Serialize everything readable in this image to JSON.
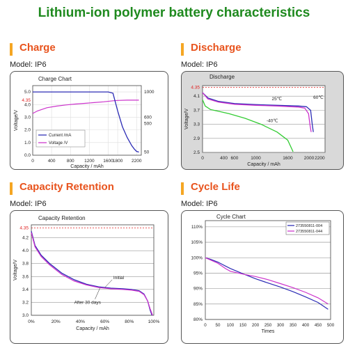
{
  "page": {
    "title": "Lithium-ion polymer battery characteristics"
  },
  "sections": [
    {
      "heading": "Charge",
      "model": "Model: IP6"
    },
    {
      "heading": "Discharge",
      "model": "Model: IP6"
    },
    {
      "heading": "Capacity Retention",
      "model": "Model: IP6"
    },
    {
      "heading": "Cycle Life",
      "model": "Model: IP6"
    }
  ],
  "colors": {
    "title": "#1f8a1f",
    "heading": "#e8531d",
    "accent_bar": "#f5a623",
    "blue": "#2b2bb5",
    "magenta": "#cc33cc",
    "green": "#33cc33",
    "red": "#e02020"
  },
  "chart_data": [
    {
      "type": "line",
      "title": "Charge Chart",
      "xlabel": "Capacity / mAh",
      "ylabel": "Voltage/V",
      "xlim": [
        0,
        2300
      ],
      "ylim": [
        0,
        5.5
      ],
      "y2lim": [
        0,
        1100
      ],
      "x_ticks": [
        "0",
        "400",
        "800",
        "1200",
        "1600",
        "1800",
        "2200"
      ],
      "y_ticks": [
        "0.0",
        "1.0",
        "2.0",
        "3.0",
        "4.0",
        "4.35",
        "5.0"
      ],
      "y2_ticks": [
        "50",
        "500",
        "600",
        "1000"
      ],
      "grid": true,
      "legend_position": "bottom-left",
      "series": [
        {
          "name": "Current /mA",
          "axis": "right",
          "color": "#2b2bb5",
          "x": [
            0,
            400,
            800,
            1200,
            1600,
            1700,
            1800,
            1900,
            2000,
            2100,
            2150,
            2200,
            2250
          ],
          "y": [
            1000,
            1000,
            1000,
            1000,
            1000,
            980,
            700,
            450,
            280,
            150,
            100,
            60,
            50
          ]
        },
        {
          "name": "Voltage /V",
          "axis": "left",
          "color": "#cc33cc",
          "x": [
            0,
            100,
            300,
            500,
            700,
            900,
            1100,
            1300,
            1500,
            1700,
            1800,
            2000,
            2250
          ],
          "y": [
            3.3,
            3.5,
            3.75,
            3.88,
            3.97,
            4.04,
            4.1,
            4.16,
            4.22,
            4.3,
            4.33,
            4.35,
            4.35
          ]
        }
      ],
      "annotations": [
        "4.35"
      ]
    },
    {
      "type": "line",
      "title": "Discharge",
      "xlabel": "Capacity / mAh",
      "ylabel": "Voltage/V",
      "xlim": [
        0,
        2300
      ],
      "ylim": [
        2.5,
        4.4
      ],
      "x_ticks": [
        "0",
        "400",
        "600",
        "1000",
        "1600",
        "2000",
        "2200"
      ],
      "x_tick_values": [
        0,
        400,
        600,
        1000,
        1600,
        2000,
        2200
      ],
      "y_ticks": [
        "2.5",
        "2.9",
        "3.3",
        "3.7",
        "4.1",
        "4.35"
      ],
      "grid": true,
      "series": [
        {
          "label": "60℃",
          "color": "#2b2bb5",
          "x": [
            0,
            100,
            300,
            600,
            1000,
            1400,
            1800,
            1950,
            2030,
            2060,
            2080
          ],
          "y": [
            4.2,
            4.05,
            3.95,
            3.89,
            3.86,
            3.84,
            3.82,
            3.8,
            3.7,
            3.3,
            3.08
          ]
        },
        {
          "label": "25℃",
          "color": "#cc33cc",
          "x": [
            0,
            100,
            300,
            600,
            1000,
            1400,
            1800,
            1920,
            1990,
            2020,
            2040
          ],
          "y": [
            4.2,
            4.02,
            3.93,
            3.87,
            3.84,
            3.82,
            3.79,
            3.76,
            3.6,
            3.25,
            3.08
          ]
        },
        {
          "label": "-40℃",
          "color": "#33cc33",
          "x": [
            0,
            50,
            150,
            300,
            500,
            800,
            1100,
            1400,
            1600,
            1700
          ],
          "y": [
            4.0,
            3.82,
            3.72,
            3.67,
            3.6,
            3.47,
            3.3,
            3.08,
            2.85,
            2.52
          ]
        }
      ],
      "annotations": [
        "4.35",
        "25℃",
        "60℃",
        "-40℃"
      ]
    },
    {
      "type": "line",
      "title": "Capacity Retention",
      "xlabel": "Capacity / mAh",
      "ylabel": "Voltage/V",
      "xlim": [
        0,
        100
      ],
      "ylim": [
        3.0,
        4.4
      ],
      "x_ticks": [
        "0%",
        "20%",
        "40%",
        "60%",
        "80%",
        "100%"
      ],
      "y_ticks": [
        "3.0",
        "3.2",
        "3.4",
        "3.6",
        "3.8",
        "4.0",
        "4.2",
        "4.35"
      ],
      "grid": true,
      "series": [
        {
          "label": "Initial",
          "color": "#2b2bb5",
          "x": [
            0,
            3,
            8,
            15,
            25,
            35,
            45,
            55,
            65,
            75,
            82,
            88,
            92,
            95,
            97,
            98.5
          ],
          "y": [
            4.3,
            4.08,
            3.93,
            3.8,
            3.65,
            3.55,
            3.48,
            3.44,
            3.42,
            3.41,
            3.4,
            3.38,
            3.33,
            3.22,
            3.08,
            3.0
          ]
        },
        {
          "label": "After 30 days",
          "color": "#cc33cc",
          "x": [
            0,
            3,
            8,
            15,
            25,
            35,
            45,
            55,
            65,
            75,
            82,
            88,
            92,
            95,
            97,
            99
          ],
          "y": [
            4.28,
            4.06,
            3.91,
            3.78,
            3.63,
            3.53,
            3.47,
            3.43,
            3.41,
            3.4,
            3.39,
            3.37,
            3.32,
            3.22,
            3.1,
            3.0
          ]
        }
      ],
      "annotations": [
        "4.35",
        "Initial",
        "After 30 days"
      ]
    },
    {
      "type": "line",
      "title": "Cycle Chart",
      "xlabel": "Times",
      "ylabel": "",
      "xlim": [
        0,
        500
      ],
      "ylim": [
        80,
        112
      ],
      "x_ticks": [
        "0",
        "50",
        "100",
        "150",
        "200",
        "250",
        "300",
        "350",
        "400",
        "450",
        "500"
      ],
      "y_ticks": [
        "80%",
        "85%",
        "90%",
        "95%",
        "100%",
        "105%",
        "110%"
      ],
      "grid": true,
      "legend_position": "top-right",
      "series": [
        {
          "name": "273550811-004",
          "color": "#2b2bb5",
          "x": [
            0,
            20,
            50,
            80,
            100,
            150,
            200,
            250,
            300,
            350,
            400,
            450,
            490
          ],
          "y": [
            100,
            99.5,
            98.6,
            97.3,
            96.5,
            94.8,
            93.2,
            91.8,
            90.5,
            89.0,
            87.3,
            85.5,
            83.3
          ]
        },
        {
          "name": "273550811-044",
          "color": "#cc33cc",
          "x": [
            0,
            20,
            50,
            80,
            100,
            150,
            200,
            250,
            300,
            350,
            400,
            450,
            490
          ],
          "y": [
            100,
            99.3,
            98.2,
            96.5,
            95.6,
            94.7,
            93.9,
            92.9,
            91.6,
            90.3,
            88.8,
            87.0,
            85.0
          ]
        }
      ]
    }
  ]
}
